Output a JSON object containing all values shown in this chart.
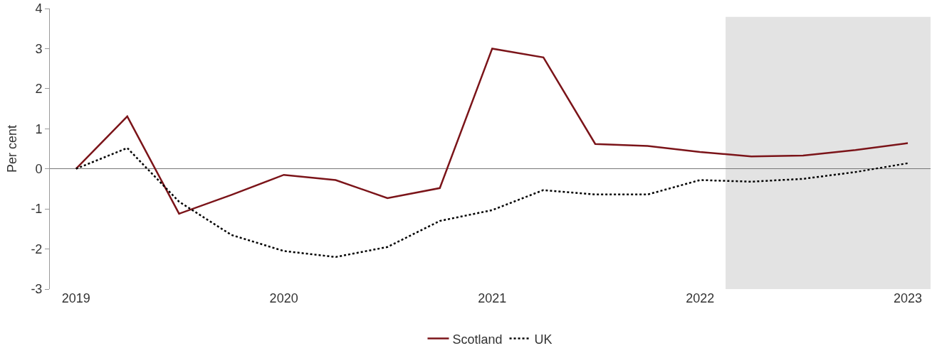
{
  "chart_data": {
    "type": "line",
    "ylabel": "Per cent",
    "x": [
      "2019-01-01",
      "2019-04-01",
      "2019-07-01",
      "2019-10-01",
      "2020-01-01",
      "2020-04-01",
      "2020-07-01",
      "2020-10-01",
      "2021-01-01",
      "2021-04-01",
      "2021-07-01",
      "2021-10-01",
      "2022-01-01",
      "2022-04-01",
      "2022-07-01",
      "2022-10-01",
      "2023-01-01"
    ],
    "series": [
      {
        "name": "Scotland",
        "color": "#7b1419",
        "line_style": "solid",
        "values": [
          0,
          1.31,
          -1.12,
          -0.65,
          -0.15,
          -0.28,
          -0.73,
          -0.48,
          3.0,
          2.78,
          0.62,
          0.57,
          0.42,
          0.31,
          0.33,
          0.47,
          0.64
        ]
      },
      {
        "name": "UK",
        "color": "#000000",
        "line_style": "dotted",
        "values": [
          0,
          0.52,
          -0.82,
          -1.65,
          -2.05,
          -2.2,
          -1.95,
          -1.3,
          -1.03,
          -0.53,
          -0.64,
          -0.64,
          -0.28,
          -0.32,
          -0.25,
          -0.08,
          0.14
        ]
      }
    ],
    "xlim": [
      "2018-11-16",
      "2023-02-10"
    ],
    "xticks": [
      {
        "value": "2019-01-01",
        "label": "2019"
      },
      {
        "value": "2020-01-01",
        "label": "2020"
      },
      {
        "value": "2021-01-01",
        "label": "2021"
      },
      {
        "value": "2022-01-01",
        "label": "2022"
      },
      {
        "value": "2023-01-01",
        "label": "2023"
      }
    ],
    "ylim": [
      -3,
      4
    ],
    "yticks": [
      -3,
      -2,
      -1,
      0,
      1,
      2,
      3,
      4
    ],
    "bands": [
      {
        "axis": "x",
        "from": "2022-02-15",
        "to": "2023-02-10",
        "color": "#e3e3e3"
      }
    ],
    "legend": "bottom",
    "marker": "none"
  }
}
